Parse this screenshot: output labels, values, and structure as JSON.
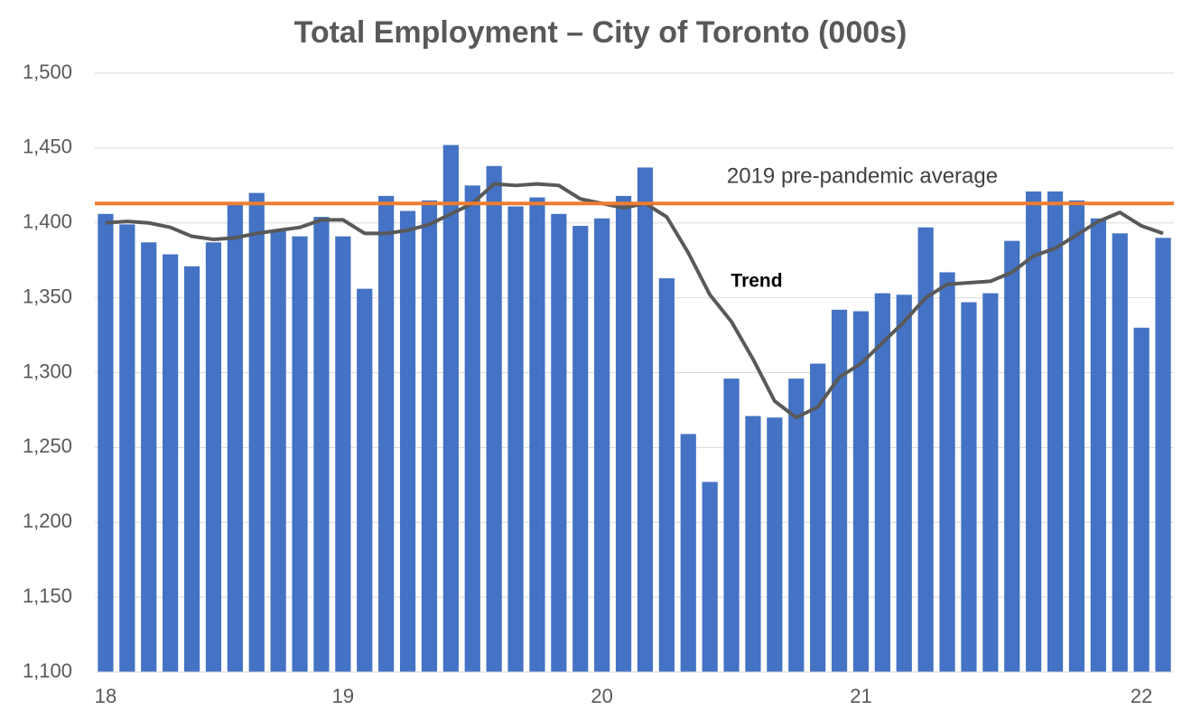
{
  "chart_data": {
    "type": "bar",
    "title": "Total Employment – City of Toronto (000s)",
    "categories": [
      "18",
      null,
      null,
      null,
      null,
      null,
      null,
      null,
      null,
      null,
      null,
      "19",
      null,
      null,
      null,
      null,
      null,
      null,
      null,
      null,
      null,
      null,
      null,
      "20",
      null,
      null,
      null,
      null,
      null,
      null,
      null,
      null,
      null,
      null,
      null,
      "21",
      null,
      null,
      null,
      null,
      null,
      null,
      null,
      null,
      null,
      null,
      null,
      null,
      "22",
      null
    ],
    "series": [
      {
        "color": "#4472c4",
        "values": [
          1406,
          1399,
          1387,
          1379,
          1371,
          1387,
          1414,
          1420,
          1395,
          1391,
          1404,
          1391,
          1356,
          1418,
          1408,
          1415,
          1452,
          1425,
          1438,
          1411,
          1417,
          1406,
          1398,
          1403,
          1418,
          1437,
          1363,
          1259,
          1227,
          1296,
          1271,
          1270,
          1296,
          1306,
          1342,
          1341,
          1353,
          1352,
          1397,
          1367,
          1347,
          1353,
          1388,
          1421,
          1421,
          1415,
          1403,
          1393,
          1330,
          1390
        ]
      },
      {
        "name": "Trend",
        "type": "line",
        "color": "#595959",
        "values": [
          1400,
          1401,
          1400,
          1397,
          1391,
          1389,
          1390,
          1393,
          1395,
          1397,
          1402,
          1402,
          1393,
          1393,
          1395,
          1399,
          1406,
          1413,
          1426,
          1425,
          1426,
          1425,
          1416,
          1413,
          1410,
          1413,
          1404,
          1380,
          1352,
          1334,
          1309,
          1281,
          1270,
          1277,
          1297,
          1306,
          1320,
          1334,
          1350,
          1359,
          1360,
          1361,
          1367,
          1378,
          1383,
          1392,
          1401,
          1407,
          1398,
          1393
        ]
      }
    ],
    "reference_line": {
      "value": 1413,
      "label": "2019 pre-pandemic average",
      "color": "#ed7d31"
    },
    "ylim": [
      1100,
      1500
    ],
    "yticks": [
      {
        "value": 1100,
        "label": "1,100"
      },
      {
        "value": 1150,
        "label": "1,150"
      },
      {
        "value": 1200,
        "label": "1,200"
      },
      {
        "value": 1250,
        "label": "1,250"
      },
      {
        "value": 1300,
        "label": "1,300"
      },
      {
        "value": 1350,
        "label": "1,350"
      },
      {
        "value": 1400,
        "label": "1,400"
      },
      {
        "value": 1450,
        "label": "1,450"
      },
      {
        "value": 1500,
        "label": "1,500"
      }
    ],
    "grid": true
  }
}
